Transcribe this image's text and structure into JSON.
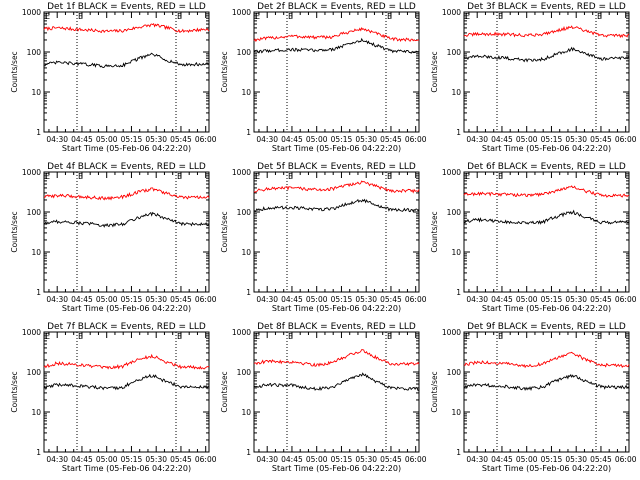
{
  "figure": {
    "ylabel": "Counts/sec",
    "xlabel": "Start Time (05-Feb-06 04:22:20)",
    "colors": {
      "events": "#000000",
      "lld": "#ff0000",
      "axes": "#000000",
      "background": "#ffffff"
    }
  },
  "chart_data": [
    {
      "type": "line",
      "title": "Det 1f BLACK = Events, RED = LLD",
      "xlim": [
        "04:22",
        "06:02"
      ],
      "ylim": [
        1,
        1000
      ],
      "yscale": "log",
      "xticks": [
        "04:30",
        "04:45",
        "05:00",
        "05:15",
        "05:30",
        "05:45",
        "06:00"
      ],
      "yticks": [
        "1",
        "10",
        "100",
        "1000"
      ],
      "vlines": [
        "04:42",
        "05:42"
      ],
      "flags": [
        "E",
        "E"
      ],
      "series": [
        {
          "color": "#ff0000",
          "x": [
            "04:22",
            "04:30",
            "04:45",
            "05:00",
            "05:10",
            "05:20",
            "05:28",
            "05:35",
            "05:45",
            "06:00"
          ],
          "y": [
            380,
            400,
            360,
            330,
            340,
            420,
            480,
            420,
            330,
            370
          ]
        },
        {
          "color": "#000000",
          "x": [
            "04:22",
            "04:30",
            "04:45",
            "05:00",
            "05:10",
            "05:20",
            "05:28",
            "05:35",
            "05:45",
            "06:00"
          ],
          "y": [
            48,
            55,
            50,
            44,
            47,
            70,
            88,
            65,
            48,
            50
          ]
        }
      ]
    },
    {
      "type": "line",
      "title": "Det 2f BLACK = Events, RED = LLD",
      "xlim": [
        "04:22",
        "06:02"
      ],
      "ylim": [
        1,
        1000
      ],
      "yscale": "log",
      "xticks": [
        "04:30",
        "04:45",
        "05:00",
        "05:15",
        "05:30",
        "05:45",
        "06:00"
      ],
      "yticks": [
        "1",
        "10",
        "100",
        "1000"
      ],
      "vlines": [
        "04:42",
        "05:42"
      ],
      "flags": [
        "E",
        "E"
      ],
      "series": [
        {
          "color": "#ff0000",
          "x": [
            "04:22",
            "04:30",
            "04:45",
            "05:00",
            "05:10",
            "05:20",
            "05:28",
            "05:35",
            "05:45",
            "06:00"
          ],
          "y": [
            200,
            220,
            250,
            230,
            240,
            320,
            380,
            300,
            210,
            200
          ]
        },
        {
          "color": "#000000",
          "x": [
            "04:22",
            "04:30",
            "04:45",
            "05:00",
            "05:10",
            "05:20",
            "05:28",
            "05:35",
            "05:45",
            "06:00"
          ],
          "y": [
            100,
            108,
            115,
            110,
            118,
            160,
            200,
            150,
            105,
            100
          ]
        }
      ]
    },
    {
      "type": "line",
      "title": "Det 3f BLACK = Events, RED = LLD",
      "xlim": [
        "04:22",
        "06:02"
      ],
      "ylim": [
        1,
        1000
      ],
      "yscale": "log",
      "xticks": [
        "04:30",
        "04:45",
        "05:00",
        "05:15",
        "05:30",
        "05:45",
        "06:00"
      ],
      "yticks": [
        "1",
        "10",
        "100",
        "1000"
      ],
      "vlines": [
        "04:42",
        "05:42"
      ],
      "flags": [
        "E",
        "E"
      ],
      "series": [
        {
          "color": "#ff0000",
          "x": [
            "04:22",
            "04:30",
            "04:45",
            "05:00",
            "05:10",
            "05:20",
            "05:28",
            "05:35",
            "05:45",
            "06:00"
          ],
          "y": [
            260,
            280,
            280,
            260,
            280,
            360,
            420,
            340,
            260,
            260
          ]
        },
        {
          "color": "#000000",
          "x": [
            "04:22",
            "04:30",
            "04:45",
            "05:00",
            "05:10",
            "05:20",
            "05:28",
            "05:35",
            "05:45",
            "06:00"
          ],
          "y": [
            70,
            78,
            72,
            62,
            66,
            95,
            120,
            90,
            68,
            70
          ]
        }
      ]
    },
    {
      "type": "line",
      "title": "Det 4f BLACK = Events, RED = LLD",
      "xlim": [
        "04:22",
        "06:02"
      ],
      "ylim": [
        1,
        1000
      ],
      "yscale": "log",
      "xticks": [
        "04:30",
        "04:45",
        "05:00",
        "05:15",
        "05:30",
        "05:45",
        "06:00"
      ],
      "yticks": [
        "1",
        "10",
        "100",
        "1000"
      ],
      "vlines": [
        "04:42",
        "05:42"
      ],
      "flags": [
        "E",
        "E"
      ],
      "series": [
        {
          "color": "#ff0000",
          "x": [
            "04:22",
            "04:30",
            "04:45",
            "05:00",
            "05:10",
            "05:20",
            "05:28",
            "05:35",
            "05:45",
            "06:00"
          ],
          "y": [
            240,
            260,
            240,
            220,
            240,
            320,
            380,
            300,
            230,
            230
          ]
        },
        {
          "color": "#000000",
          "x": [
            "04:22",
            "04:30",
            "04:45",
            "05:00",
            "05:10",
            "05:20",
            "05:28",
            "05:35",
            "05:45",
            "06:00"
          ],
          "y": [
            52,
            58,
            53,
            46,
            50,
            75,
            92,
            70,
            50,
            50
          ]
        }
      ]
    },
    {
      "type": "line",
      "title": "Det 5f BLACK = Events, RED = LLD",
      "xlim": [
        "04:22",
        "06:02"
      ],
      "ylim": [
        1,
        1000
      ],
      "yscale": "log",
      "xticks": [
        "04:30",
        "04:45",
        "05:00",
        "05:15",
        "05:30",
        "05:45",
        "06:00"
      ],
      "yticks": [
        "1",
        "10",
        "100",
        "1000"
      ],
      "vlines": [
        "04:42",
        "05:42"
      ],
      "flags": [
        "E",
        "E"
      ],
      "series": [
        {
          "color": "#ff0000",
          "x": [
            "04:22",
            "04:30",
            "04:45",
            "05:00",
            "05:10",
            "05:20",
            "05:28",
            "05:35",
            "05:45",
            "06:00"
          ],
          "y": [
            330,
            380,
            400,
            360,
            380,
            480,
            560,
            450,
            340,
            340
          ]
        },
        {
          "color": "#000000",
          "x": [
            "04:22",
            "04:30",
            "04:45",
            "05:00",
            "05:10",
            "05:20",
            "05:28",
            "05:35",
            "05:45",
            "06:00"
          ],
          "y": [
            110,
            125,
            130,
            115,
            122,
            165,
            200,
            150,
            112,
            112
          ]
        }
      ]
    },
    {
      "type": "line",
      "title": "Det 6f BLACK = Events, RED = LLD",
      "xlim": [
        "04:22",
        "06:02"
      ],
      "ylim": [
        1,
        1000
      ],
      "yscale": "log",
      "xticks": [
        "04:30",
        "04:45",
        "05:00",
        "05:15",
        "05:30",
        "05:45",
        "06:00"
      ],
      "yticks": [
        "1",
        "10",
        "100",
        "1000"
      ],
      "vlines": [
        "04:42",
        "05:42"
      ],
      "flags": [
        "E",
        "E"
      ],
      "series": [
        {
          "color": "#ff0000",
          "x": [
            "04:22",
            "04:30",
            "04:45",
            "05:00",
            "05:10",
            "05:20",
            "05:28",
            "05:35",
            "05:45",
            "06:00"
          ],
          "y": [
            270,
            290,
            280,
            260,
            280,
            360,
            420,
            340,
            260,
            260
          ]
        },
        {
          "color": "#000000",
          "x": [
            "04:22",
            "04:30",
            "04:45",
            "05:00",
            "05:10",
            "05:20",
            "05:28",
            "05:35",
            "05:45",
            "06:00"
          ],
          "y": [
            58,
            64,
            58,
            52,
            56,
            82,
            100,
            75,
            55,
            55
          ]
        }
      ]
    },
    {
      "type": "line",
      "title": "Det 7f BLACK = Events, RED = LLD",
      "xlim": [
        "04:22",
        "06:02"
      ],
      "ylim": [
        1,
        1000
      ],
      "yscale": "log",
      "xticks": [
        "04:30",
        "04:45",
        "05:00",
        "05:15",
        "05:30",
        "05:45",
        "06:00"
      ],
      "yticks": [
        "1",
        "10",
        "100",
        "1000"
      ],
      "vlines": [
        "04:42",
        "05:42"
      ],
      "flags": [
        "E",
        "E"
      ],
      "series": [
        {
          "color": "#ff0000",
          "x": [
            "04:22",
            "04:30",
            "04:45",
            "05:00",
            "05:10",
            "05:20",
            "05:28",
            "05:35",
            "05:45",
            "06:00"
          ],
          "y": [
            135,
            165,
            150,
            125,
            140,
            210,
            250,
            185,
            135,
            130
          ]
        },
        {
          "color": "#000000",
          "x": [
            "04:22",
            "04:30",
            "04:45",
            "05:00",
            "05:10",
            "05:20",
            "05:28",
            "05:35",
            "05:45",
            "06:00"
          ],
          "y": [
            40,
            48,
            45,
            38,
            42,
            65,
            82,
            60,
            42,
            42
          ]
        }
      ]
    },
    {
      "type": "line",
      "title": "Det 8f BLACK = Events, RED = LLD",
      "xlim": [
        "04:22",
        "06:02"
      ],
      "ylim": [
        1,
        1000
      ],
      "yscale": "log",
      "xticks": [
        "04:30",
        "04:45",
        "05:00",
        "05:15",
        "05:30",
        "05:45",
        "06:00"
      ],
      "yticks": [
        "1",
        "10",
        "100",
        "1000"
      ],
      "vlines": [
        "04:42",
        "05:42"
      ],
      "flags": [
        "E",
        "E"
      ],
      "series": [
        {
          "color": "#ff0000",
          "x": [
            "04:22",
            "04:30",
            "04:45",
            "05:00",
            "05:10",
            "05:20",
            "05:28",
            "05:35",
            "05:45",
            "06:00"
          ],
          "y": [
            165,
            185,
            180,
            150,
            170,
            270,
            340,
            240,
            160,
            160
          ]
        },
        {
          "color": "#000000",
          "x": [
            "04:22",
            "04:30",
            "04:45",
            "05:00",
            "05:10",
            "05:20",
            "05:28",
            "05:35",
            "05:45",
            "06:00"
          ],
          "y": [
            42,
            48,
            46,
            38,
            42,
            68,
            88,
            60,
            40,
            38
          ]
        }
      ]
    },
    {
      "type": "line",
      "title": "Det 9f BLACK = Events, RED = LLD",
      "xlim": [
        "04:22",
        "06:02"
      ],
      "ylim": [
        1,
        1000
      ],
      "yscale": "log",
      "xticks": [
        "04:30",
        "04:45",
        "05:00",
        "05:15",
        "05:30",
        "05:45",
        "06:00"
      ],
      "yticks": [
        "1",
        "10",
        "100",
        "1000"
      ],
      "vlines": [
        "04:42",
        "05:42"
      ],
      "flags": [
        "E",
        "E"
      ],
      "series": [
        {
          "color": "#ff0000",
          "x": [
            "04:22",
            "04:30",
            "04:45",
            "05:00",
            "05:10",
            "05:20",
            "05:28",
            "05:35",
            "05:45",
            "06:00"
          ],
          "y": [
            150,
            175,
            165,
            140,
            160,
            240,
            290,
            210,
            150,
            145
          ]
        },
        {
          "color": "#000000",
          "x": [
            "04:22",
            "04:30",
            "04:45",
            "05:00",
            "05:10",
            "05:20",
            "05:28",
            "05:35",
            "05:45",
            "06:00"
          ],
          "y": [
            42,
            48,
            45,
            38,
            42,
            65,
            82,
            60,
            42,
            42
          ]
        }
      ]
    }
  ]
}
